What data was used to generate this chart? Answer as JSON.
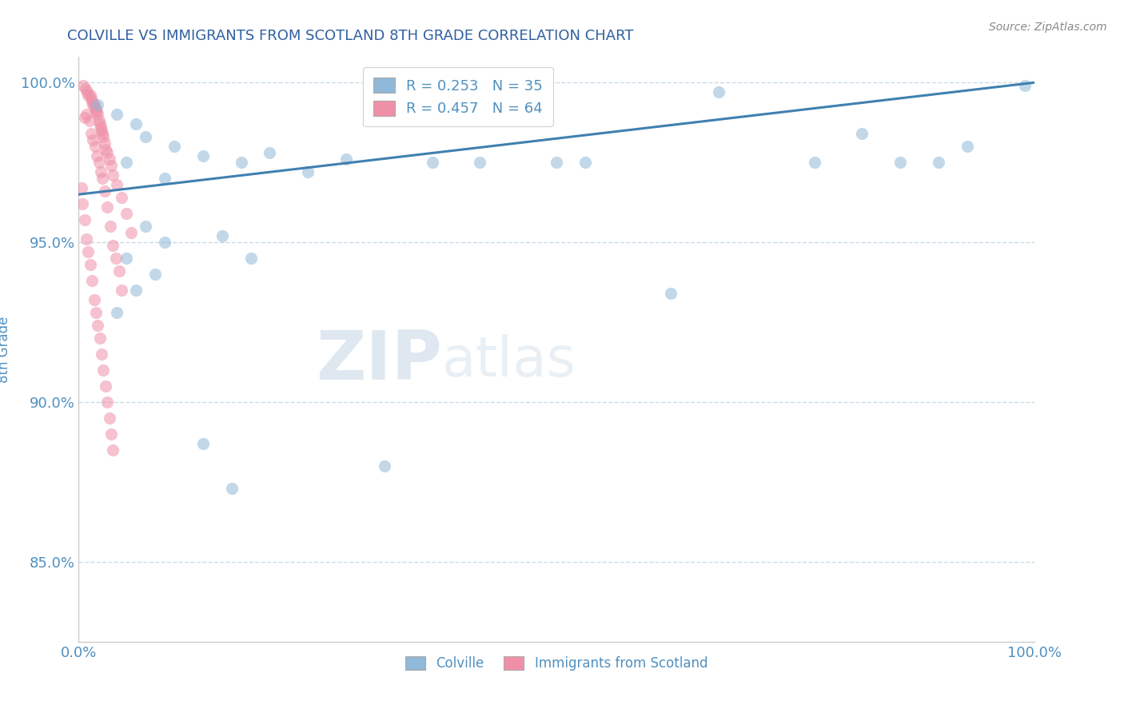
{
  "title": "COLVILLE VS IMMIGRANTS FROM SCOTLAND 8TH GRADE CORRELATION CHART",
  "source": "Source: ZipAtlas.com",
  "ylabel": "8th Grade",
  "xlim": [
    0.0,
    1.0
  ],
  "ylim": [
    0.825,
    1.008
  ],
  "yticks": [
    0.85,
    0.9,
    0.95,
    1.0
  ],
  "ytick_labels": [
    "85.0%",
    "90.0%",
    "95.0%",
    "100.0%"
  ],
  "xticks": [
    0.0,
    0.25,
    0.5,
    0.75,
    1.0
  ],
  "xtick_labels": [
    "0.0%",
    "",
    "",
    "",
    "100.0%"
  ],
  "legend_r1": "R = 0.253   N = 35",
  "legend_r2": "R = 0.457   N = 64",
  "watermark_zip": "ZIP",
  "watermark_atlas": "atlas",
  "blue_color": "#90b8d8",
  "pink_color": "#f090a8",
  "line_color": "#4080b0",
  "grid_color": "#c8dce8",
  "title_color": "#3060a0",
  "axis_label_color": "#5090c0",
  "tick_label_color": "#5090c0",
  "source_color": "#888888",
  "blue_scatter": [
    [
      0.02,
      0.993
    ],
    [
      0.04,
      0.99
    ],
    [
      0.06,
      0.987
    ],
    [
      0.07,
      0.983
    ],
    [
      0.1,
      0.98
    ],
    [
      0.13,
      0.977
    ],
    [
      0.17,
      0.975
    ],
    [
      0.2,
      0.978
    ],
    [
      0.24,
      0.972
    ],
    [
      0.28,
      0.976
    ],
    [
      0.37,
      0.975
    ],
    [
      0.42,
      0.975
    ],
    [
      0.5,
      0.975
    ],
    [
      0.53,
      0.975
    ],
    [
      0.67,
      0.997
    ],
    [
      0.77,
      0.975
    ],
    [
      0.82,
      0.984
    ],
    [
      0.86,
      0.975
    ],
    [
      0.9,
      0.975
    ],
    [
      0.93,
      0.98
    ],
    [
      0.99,
      0.999
    ],
    [
      0.05,
      0.975
    ],
    [
      0.09,
      0.97
    ],
    [
      0.07,
      0.955
    ],
    [
      0.09,
      0.95
    ],
    [
      0.05,
      0.945
    ],
    [
      0.08,
      0.94
    ],
    [
      0.06,
      0.935
    ],
    [
      0.04,
      0.928
    ],
    [
      0.15,
      0.952
    ],
    [
      0.18,
      0.945
    ],
    [
      0.62,
      0.934
    ],
    [
      0.16,
      0.873
    ],
    [
      0.13,
      0.887
    ],
    [
      0.32,
      0.88
    ]
  ],
  "pink_scatter": [
    [
      0.005,
      0.999
    ],
    [
      0.007,
      0.998
    ],
    [
      0.009,
      0.997
    ],
    [
      0.01,
      0.996
    ],
    [
      0.012,
      0.996
    ],
    [
      0.013,
      0.995
    ],
    [
      0.014,
      0.994
    ],
    [
      0.015,
      0.993
    ],
    [
      0.016,
      0.993
    ],
    [
      0.017,
      0.992
    ],
    [
      0.018,
      0.991
    ],
    [
      0.019,
      0.991
    ],
    [
      0.02,
      0.99
    ],
    [
      0.008,
      0.99
    ],
    [
      0.006,
      0.989
    ],
    [
      0.011,
      0.988
    ],
    [
      0.021,
      0.988
    ],
    [
      0.022,
      0.987
    ],
    [
      0.023,
      0.986
    ],
    [
      0.024,
      0.985
    ],
    [
      0.025,
      0.984
    ],
    [
      0.013,
      0.984
    ],
    [
      0.026,
      0.983
    ],
    [
      0.015,
      0.982
    ],
    [
      0.027,
      0.981
    ],
    [
      0.017,
      0.98
    ],
    [
      0.028,
      0.979
    ],
    [
      0.03,
      0.978
    ],
    [
      0.019,
      0.977
    ],
    [
      0.032,
      0.976
    ],
    [
      0.021,
      0.975
    ],
    [
      0.034,
      0.974
    ],
    [
      0.023,
      0.972
    ],
    [
      0.036,
      0.971
    ],
    [
      0.025,
      0.97
    ],
    [
      0.04,
      0.968
    ],
    [
      0.003,
      0.967
    ],
    [
      0.027,
      0.966
    ],
    [
      0.045,
      0.964
    ],
    [
      0.004,
      0.962
    ],
    [
      0.03,
      0.961
    ],
    [
      0.05,
      0.959
    ],
    [
      0.006,
      0.957
    ],
    [
      0.033,
      0.955
    ],
    [
      0.055,
      0.953
    ],
    [
      0.008,
      0.951
    ],
    [
      0.036,
      0.949
    ],
    [
      0.01,
      0.947
    ],
    [
      0.039,
      0.945
    ],
    [
      0.012,
      0.943
    ],
    [
      0.042,
      0.941
    ],
    [
      0.014,
      0.938
    ],
    [
      0.045,
      0.935
    ],
    [
      0.016,
      0.932
    ],
    [
      0.018,
      0.928
    ],
    [
      0.02,
      0.924
    ],
    [
      0.022,
      0.92
    ],
    [
      0.024,
      0.915
    ],
    [
      0.026,
      0.91
    ],
    [
      0.028,
      0.905
    ],
    [
      0.03,
      0.9
    ],
    [
      0.032,
      0.895
    ],
    [
      0.034,
      0.89
    ],
    [
      0.036,
      0.885
    ]
  ],
  "trend_x": [
    0.0,
    1.0
  ],
  "trend_y_start": 0.965,
  "trend_y_end": 1.0,
  "dpi": 100,
  "figsize": [
    14.06,
    8.92
  ]
}
